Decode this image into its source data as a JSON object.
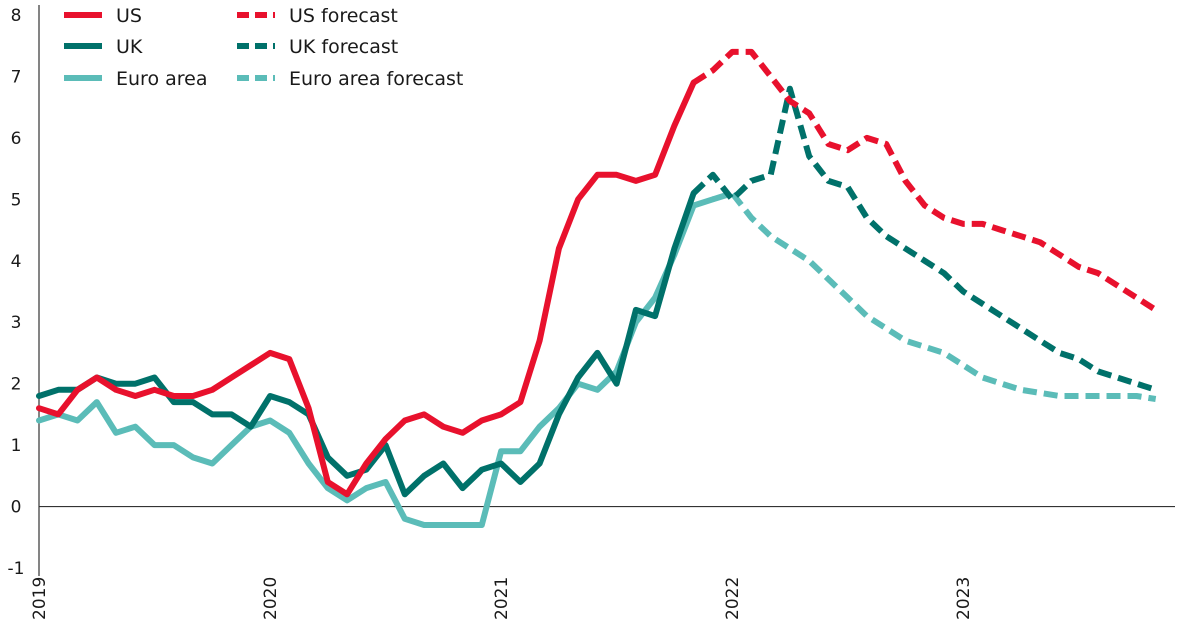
{
  "chart_data": {
    "type": "line",
    "title": "",
    "xlabel": "",
    "ylabel": "",
    "ylim": [
      -1,
      8
    ],
    "yticks": [
      "-1",
      "0",
      "1",
      "2",
      "3",
      "4",
      "5",
      "6",
      "7",
      "8"
    ],
    "xlim": [
      "2019-01",
      "2023-11"
    ],
    "xticks": [
      {
        "label": "2019",
        "date": "2019-01"
      },
      {
        "label": "2020",
        "date": "2020-01"
      },
      {
        "label": "2021",
        "date": "2021-01"
      },
      {
        "label": "2022",
        "date": "2022-01"
      },
      {
        "label": "2023",
        "date": "2023-01"
      }
    ],
    "grid": false,
    "legend": "top-left",
    "colors": {
      "US": "#e8112d",
      "UK": "#00716a",
      "Euro area": "#5bbcb8",
      "zero_line": "#333333",
      "axis": "#333333"
    },
    "series": [
      {
        "name": "US",
        "style": "solid",
        "color": "#e8112d",
        "points": [
          [
            "2019-01",
            1.6
          ],
          [
            "2019-02",
            1.5
          ],
          [
            "2019-03",
            1.9
          ],
          [
            "2019-04",
            2.1
          ],
          [
            "2019-05",
            1.9
          ],
          [
            "2019-06",
            1.8
          ],
          [
            "2019-07",
            1.9
          ],
          [
            "2019-08",
            1.8
          ],
          [
            "2019-09",
            1.8
          ],
          [
            "2019-10",
            1.9
          ],
          [
            "2019-11",
            2.1
          ],
          [
            "2019-12",
            2.3
          ],
          [
            "2020-01",
            2.5
          ],
          [
            "2020-02",
            2.4
          ],
          [
            "2020-03",
            1.6
          ],
          [
            "2020-04",
            0.4
          ],
          [
            "2020-05",
            0.2
          ],
          [
            "2020-06",
            0.7
          ],
          [
            "2020-07",
            1.1
          ],
          [
            "2020-08",
            1.4
          ],
          [
            "2020-09",
            1.5
          ],
          [
            "2020-10",
            1.3
          ],
          [
            "2020-11",
            1.2
          ],
          [
            "2020-12",
            1.4
          ],
          [
            "2021-01",
            1.5
          ],
          [
            "2021-02",
            1.7
          ],
          [
            "2021-03",
            2.7
          ],
          [
            "2021-04",
            4.2
          ],
          [
            "2021-05",
            5.0
          ],
          [
            "2021-06",
            5.4
          ],
          [
            "2021-07",
            5.4
          ],
          [
            "2021-08",
            5.3
          ],
          [
            "2021-09",
            5.4
          ],
          [
            "2021-10",
            6.2
          ],
          [
            "2021-11",
            6.9
          ]
        ]
      },
      {
        "name": "UK",
        "style": "solid",
        "color": "#00716a",
        "points": [
          [
            "2019-01",
            1.8
          ],
          [
            "2019-02",
            1.9
          ],
          [
            "2019-03",
            1.9
          ],
          [
            "2019-04",
            2.1
          ],
          [
            "2019-05",
            2.0
          ],
          [
            "2019-06",
            2.0
          ],
          [
            "2019-07",
            2.1
          ],
          [
            "2019-08",
            1.7
          ],
          [
            "2019-09",
            1.7
          ],
          [
            "2019-10",
            1.5
          ],
          [
            "2019-11",
            1.5
          ],
          [
            "2019-12",
            1.3
          ],
          [
            "2020-01",
            1.8
          ],
          [
            "2020-02",
            1.7
          ],
          [
            "2020-03",
            1.5
          ],
          [
            "2020-04",
            0.8
          ],
          [
            "2020-05",
            0.5
          ],
          [
            "2020-06",
            0.6
          ],
          [
            "2020-07",
            1.0
          ],
          [
            "2020-08",
            0.2
          ],
          [
            "2020-09",
            0.5
          ],
          [
            "2020-10",
            0.7
          ],
          [
            "2020-11",
            0.3
          ],
          [
            "2020-12",
            0.6
          ],
          [
            "2021-01",
            0.7
          ],
          [
            "2021-02",
            0.4
          ],
          [
            "2021-03",
            0.7
          ],
          [
            "2021-04",
            1.5
          ],
          [
            "2021-05",
            2.1
          ],
          [
            "2021-06",
            2.5
          ],
          [
            "2021-07",
            2.0
          ],
          [
            "2021-08",
            3.2
          ],
          [
            "2021-09",
            3.1
          ],
          [
            "2021-10",
            4.2
          ],
          [
            "2021-11",
            5.1
          ]
        ]
      },
      {
        "name": "Euro area",
        "style": "solid",
        "color": "#5bbcb8",
        "points": [
          [
            "2019-01",
            1.4
          ],
          [
            "2019-02",
            1.5
          ],
          [
            "2019-03",
            1.4
          ],
          [
            "2019-04",
            1.7
          ],
          [
            "2019-05",
            1.2
          ],
          [
            "2019-06",
            1.3
          ],
          [
            "2019-07",
            1.0
          ],
          [
            "2019-08",
            1.0
          ],
          [
            "2019-09",
            0.8
          ],
          [
            "2019-10",
            0.7
          ],
          [
            "2019-11",
            1.0
          ],
          [
            "2019-12",
            1.3
          ],
          [
            "2020-01",
            1.4
          ],
          [
            "2020-02",
            1.2
          ],
          [
            "2020-03",
            0.7
          ],
          [
            "2020-04",
            0.3
          ],
          [
            "2020-05",
            0.1
          ],
          [
            "2020-06",
            0.3
          ],
          [
            "2020-07",
            0.4
          ],
          [
            "2020-08",
            -0.2
          ],
          [
            "2020-09",
            -0.3
          ],
          [
            "2020-10",
            -0.3
          ],
          [
            "2020-11",
            -0.3
          ],
          [
            "2020-12",
            -0.3
          ],
          [
            "2021-01",
            0.9
          ],
          [
            "2021-02",
            0.9
          ],
          [
            "2021-03",
            1.3
          ],
          [
            "2021-04",
            1.6
          ],
          [
            "2021-05",
            2.0
          ],
          [
            "2021-06",
            1.9
          ],
          [
            "2021-07",
            2.2
          ],
          [
            "2021-08",
            3.0
          ],
          [
            "2021-09",
            3.4
          ],
          [
            "2021-10",
            4.1
          ],
          [
            "2021-11",
            4.9
          ],
          [
            "2021-12",
            5.0
          ]
        ]
      },
      {
        "name": "US forecast",
        "style": "dashed",
        "color": "#e8112d",
        "points": [
          [
            "2021-11",
            6.9
          ],
          [
            "2021-12",
            7.1
          ],
          [
            "2022-01",
            7.4
          ],
          [
            "2022-02",
            7.4
          ],
          [
            "2022-03",
            7.0
          ],
          [
            "2022-04",
            6.6
          ],
          [
            "2022-05",
            6.4
          ],
          [
            "2022-06",
            5.9
          ],
          [
            "2022-07",
            5.8
          ],
          [
            "2022-08",
            6.0
          ],
          [
            "2022-09",
            5.9
          ],
          [
            "2022-10",
            5.3
          ],
          [
            "2022-11",
            4.9
          ],
          [
            "2022-12",
            4.7
          ],
          [
            "2023-01",
            4.6
          ],
          [
            "2023-02",
            4.6
          ],
          [
            "2023-03",
            4.5
          ],
          [
            "2023-04",
            4.4
          ],
          [
            "2023-05",
            4.3
          ],
          [
            "2023-06",
            4.1
          ],
          [
            "2023-07",
            3.9
          ],
          [
            "2023-08",
            3.8
          ],
          [
            "2023-09",
            3.6
          ],
          [
            "2023-10",
            3.4
          ],
          [
            "2023-11",
            3.2
          ]
        ]
      },
      {
        "name": "UK forecast",
        "style": "dashed",
        "color": "#00716a",
        "points": [
          [
            "2021-11",
            5.1
          ],
          [
            "2021-12",
            5.4
          ],
          [
            "2022-01",
            5.0
          ],
          [
            "2022-02",
            5.3
          ],
          [
            "2022-03",
            5.4
          ],
          [
            "2022-04",
            6.8
          ],
          [
            "2022-05",
            5.7
          ],
          [
            "2022-06",
            5.3
          ],
          [
            "2022-07",
            5.2
          ],
          [
            "2022-08",
            4.7
          ],
          [
            "2022-09",
            4.4
          ],
          [
            "2022-10",
            4.2
          ],
          [
            "2022-11",
            4.0
          ],
          [
            "2022-12",
            3.8
          ],
          [
            "2023-01",
            3.5
          ],
          [
            "2023-02",
            3.3
          ],
          [
            "2023-03",
            3.1
          ],
          [
            "2023-04",
            2.9
          ],
          [
            "2023-05",
            2.7
          ],
          [
            "2023-06",
            2.5
          ],
          [
            "2023-07",
            2.4
          ],
          [
            "2023-08",
            2.2
          ],
          [
            "2023-09",
            2.1
          ],
          [
            "2023-10",
            2.0
          ],
          [
            "2023-11",
            1.9
          ]
        ]
      },
      {
        "name": "Euro area forecast",
        "style": "dashed",
        "color": "#5bbcb8",
        "points": [
          [
            "2021-12",
            5.0
          ],
          [
            "2022-01",
            5.1
          ],
          [
            "2022-02",
            4.7
          ],
          [
            "2022-03",
            4.4
          ],
          [
            "2022-04",
            4.2
          ],
          [
            "2022-05",
            4.0
          ],
          [
            "2022-06",
            3.7
          ],
          [
            "2022-07",
            3.4
          ],
          [
            "2022-08",
            3.1
          ],
          [
            "2022-09",
            2.9
          ],
          [
            "2022-10",
            2.7
          ],
          [
            "2022-11",
            2.6
          ],
          [
            "2022-12",
            2.5
          ],
          [
            "2023-01",
            2.3
          ],
          [
            "2023-02",
            2.1
          ],
          [
            "2023-03",
            2.0
          ],
          [
            "2023-04",
            1.9
          ],
          [
            "2023-05",
            1.85
          ],
          [
            "2023-06",
            1.8
          ],
          [
            "2023-07",
            1.8
          ],
          [
            "2023-08",
            1.8
          ],
          [
            "2023-09",
            1.8
          ],
          [
            "2023-10",
            1.8
          ],
          [
            "2023-11",
            1.75
          ]
        ]
      }
    ]
  }
}
